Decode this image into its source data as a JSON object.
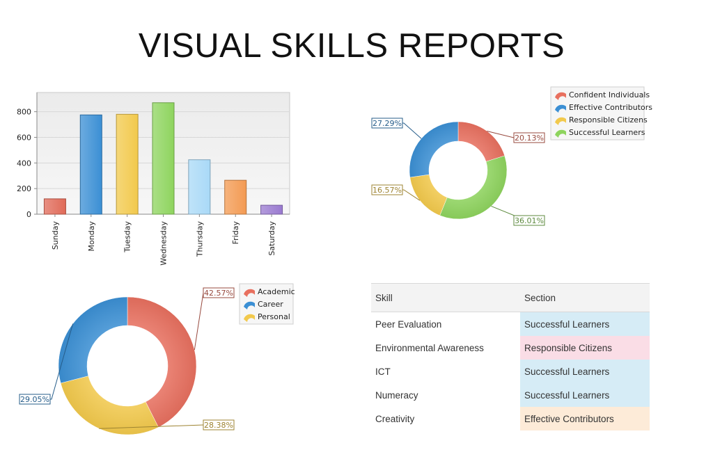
{
  "page": {
    "title": "VISUAL SKILLS REPORTS"
  },
  "chart_data": [
    {
      "type": "bar",
      "categories": [
        "Sunday",
        "Monday",
        "Tuesday",
        "Wednesday",
        "Thursday",
        "Friday",
        "Saturday"
      ],
      "values": [
        120,
        775,
        780,
        870,
        425,
        265,
        70
      ],
      "ylim": [
        0,
        950
      ],
      "yticks": [
        0,
        200,
        400,
        600,
        800
      ],
      "colors": [
        "#e06a58",
        "#3b8fd4",
        "#f2c94c",
        "#8ed45e",
        "#a9d9f7",
        "#f39a52",
        "#9a7ad0"
      ],
      "grid": true
    },
    {
      "type": "pie",
      "donut": true,
      "legend_position": "top-right",
      "slices": [
        {
          "label": "Confident Individuals",
          "value": 20.13,
          "text": "20.13%",
          "color": "#e8705f"
        },
        {
          "label": "Successful Learners",
          "value": 36.01,
          "text": "36.01%",
          "color": "#8ed45e"
        },
        {
          "label": "Responsible Citizens",
          "value": 16.57,
          "text": "16.57%",
          "color": "#f2c94c"
        },
        {
          "label": "Effective Contributors",
          "value": 27.29,
          "text": "27.29%",
          "color": "#3b8fd4"
        }
      ],
      "legend": [
        {
          "label": "Confident Individuals",
          "color": "#e8705f"
        },
        {
          "label": "Effective Contributors",
          "color": "#3b8fd4"
        },
        {
          "label": "Responsible Citizens",
          "color": "#f2c94c"
        },
        {
          "label": "Successful Learners",
          "color": "#8ed45e"
        }
      ]
    },
    {
      "type": "pie",
      "donut": true,
      "legend_position": "top-right",
      "slices": [
        {
          "label": "Academic",
          "value": 42.57,
          "text": "42.57%",
          "color": "#e8705f"
        },
        {
          "label": "Personal",
          "value": 28.38,
          "text": "28.38%",
          "color": "#f2c94c"
        },
        {
          "label": "Career",
          "value": 29.05,
          "text": "29.05%",
          "color": "#3b8fd4"
        }
      ],
      "legend": [
        {
          "label": "Academic",
          "color": "#e8705f"
        },
        {
          "label": "Career",
          "color": "#3b8fd4"
        },
        {
          "label": "Personal",
          "color": "#f2c94c"
        }
      ]
    }
  ],
  "table": {
    "headers": {
      "skill": "Skill",
      "section": "Section"
    },
    "rows": [
      {
        "skill": "Peer Evaluation",
        "section": "Successful Learners",
        "color": "#d6ecf6"
      },
      {
        "skill": "Environmental Awareness",
        "section": "Responsible Citizens",
        "color": "#fadde6"
      },
      {
        "skill": "ICT",
        "section": "Successful Learners",
        "color": "#d6ecf6"
      },
      {
        "skill": "Numeracy",
        "section": "Successful Learners",
        "color": "#d6ecf6"
      },
      {
        "skill": "Creativity",
        "section": "Effective Contributors",
        "color": "#fdebd8"
      }
    ]
  }
}
